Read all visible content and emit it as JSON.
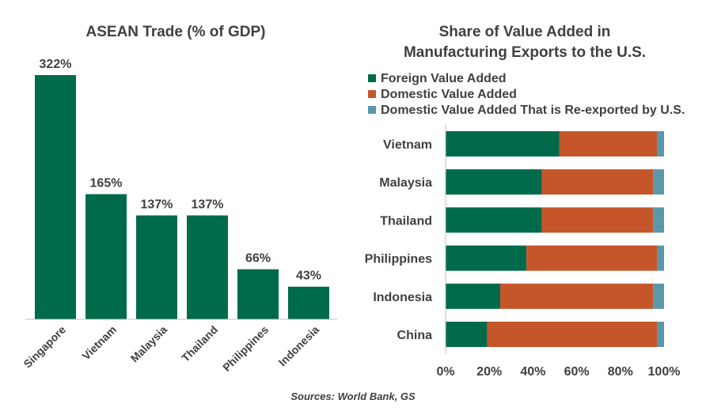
{
  "colors": {
    "bar_green": "#006b4b",
    "foreign": "#006b4b",
    "domestic": "#c5562a",
    "reexported": "#5b97ab",
    "text": "#404040"
  },
  "source_note": "Sources: World Bank, GS",
  "chart_data": [
    {
      "type": "bar",
      "title": "ASEAN Trade (% of GDP)",
      "categories": [
        "Singapore",
        "Vietnam",
        "Malaysia",
        "Thailand",
        "Philippines",
        "Indonesia"
      ],
      "values": [
        322,
        165,
        137,
        137,
        66,
        43
      ],
      "value_labels": [
        "322%",
        "165%",
        "137%",
        "137%",
        "66%",
        "43%"
      ],
      "ylim": [
        0,
        322
      ],
      "grid": false,
      "xlabel": "",
      "ylabel": ""
    },
    {
      "type": "bar",
      "orientation": "horizontal",
      "stacked": true,
      "title_lines": [
        "Share of Value Added in",
        "Manufacturing Exports to the U.S."
      ],
      "categories": [
        "Vietnam",
        "Malaysia",
        "Thailand",
        "Philippines",
        "Indonesia",
        "China"
      ],
      "series": [
        {
          "name": "Foreign Value Added",
          "values": [
            52,
            44,
            44,
            37,
            25,
            19
          ]
        },
        {
          "name": "Domestic Value Added",
          "values": [
            45,
            51,
            51,
            60,
            70,
            78
          ]
        },
        {
          "name": "Domestic Value Added That is Re-exported by U.S.",
          "values": [
            3,
            5,
            5,
            3,
            5,
            3
          ]
        }
      ],
      "xlim": [
        0,
        100
      ],
      "x_ticks": [
        "0%",
        "20%",
        "40%",
        "60%",
        "80%",
        "100%"
      ],
      "legend_position": "top",
      "grid": false
    }
  ]
}
